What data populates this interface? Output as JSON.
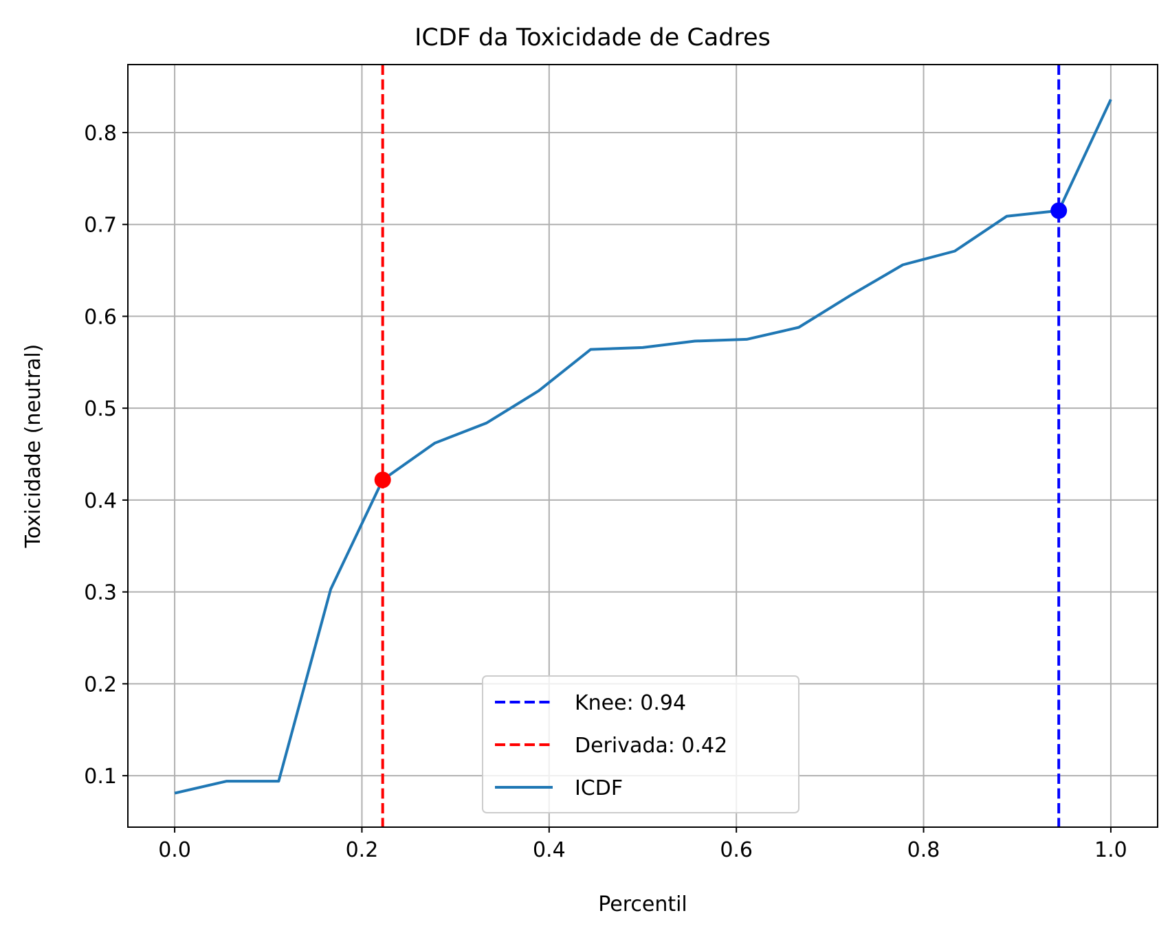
{
  "chart_data": {
    "type": "line",
    "title": "ICDF da Toxicidade de Cadres",
    "xlabel": "Percentil",
    "ylabel": "Toxicidade (neutral)",
    "xlim": [
      -0.05,
      1.05
    ],
    "ylim": [
      0.044,
      0.874
    ],
    "xticks": [
      0.0,
      0.2,
      0.4,
      0.6,
      0.8,
      1.0
    ],
    "xtick_labels": [
      "0.0",
      "0.2",
      "0.4",
      "0.6",
      "0.8",
      "1.0"
    ],
    "yticks": [
      0.1,
      0.2,
      0.3,
      0.4,
      0.5,
      0.6,
      0.7,
      0.8
    ],
    "ytick_labels": [
      "0.1",
      "0.2",
      "0.3",
      "0.4",
      "0.5",
      "0.6",
      "0.7",
      "0.8"
    ],
    "grid": true,
    "legend_position": "bottom-center",
    "series": [
      {
        "name": "ICDF",
        "color": "#1f77b4",
        "x": [
          0.0,
          0.0556,
          0.1111,
          0.1667,
          0.2222,
          0.2778,
          0.3333,
          0.3889,
          0.4444,
          0.5,
          0.5556,
          0.6111,
          0.6667,
          0.7222,
          0.7778,
          0.8333,
          0.8889,
          0.9444,
          1.0
        ],
        "y": [
          0.081,
          0.094,
          0.094,
          0.303,
          0.422,
          0.462,
          0.484,
          0.519,
          0.564,
          0.566,
          0.573,
          0.575,
          0.588,
          0.623,
          0.656,
          0.671,
          0.709,
          0.715,
          0.836
        ]
      }
    ],
    "vlines": [
      {
        "label": "Knee: 0.94",
        "x": 0.9444,
        "color": "#0000ff",
        "style": "dashed"
      },
      {
        "label": "Derivada: 0.42",
        "x": 0.2222,
        "color": "#ff0000",
        "style": "dashed"
      }
    ],
    "markers": [
      {
        "x": 0.9444,
        "y": 0.715,
        "color": "#0000ff"
      },
      {
        "x": 0.2222,
        "y": 0.422,
        "color": "#ff0000"
      }
    ],
    "legend": [
      {
        "label": "Knee: 0.94",
        "color": "#0000ff",
        "style": "dashed"
      },
      {
        "label": "Derivada: 0.42",
        "color": "#ff0000",
        "style": "dashed"
      },
      {
        "label": "ICDF",
        "color": "#1f77b4",
        "style": "solid"
      }
    ]
  }
}
